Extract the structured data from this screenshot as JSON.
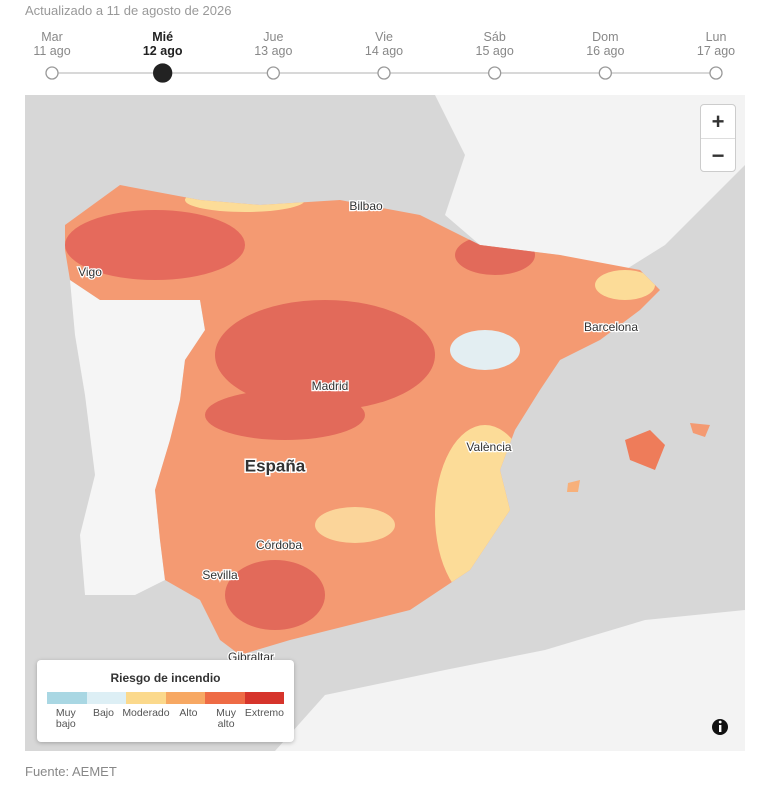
{
  "header": {
    "updated": "Actualizado a 11 de agosto de 2026"
  },
  "timeline": {
    "selected": 1,
    "days": [
      {
        "day": "Mar",
        "date": "11 ago"
      },
      {
        "day": "Mié",
        "date": "12 ago"
      },
      {
        "day": "Jue",
        "date": "13 ago"
      },
      {
        "day": "Vie",
        "date": "14 ago"
      },
      {
        "day": "Sáb",
        "date": "15 ago"
      },
      {
        "day": "Dom",
        "date": "16 ago"
      },
      {
        "day": "Lun",
        "date": "17 ago"
      }
    ]
  },
  "map": {
    "controls": {
      "zoom_in": "+",
      "zoom_out": "−"
    },
    "labels": [
      "Bilbao",
      "Vigo",
      "Barcelona",
      "Madrid",
      "València",
      "España",
      "Córdoba",
      "Sevilla",
      "Gibraltar"
    ]
  },
  "legend": {
    "title": "Riesgo de incendio",
    "items": [
      {
        "label": "Muy bajo",
        "color": "#a9d7e3"
      },
      {
        "label": "Bajo",
        "color": "#ddeff5"
      },
      {
        "label": "Moderado",
        "color": "#fbd98c"
      },
      {
        "label": "Alto",
        "color": "#f7a863"
      },
      {
        "label": "Muy alto",
        "color": "#ee6b45"
      },
      {
        "label": "Extremo",
        "color": "#d6342b"
      }
    ]
  },
  "source": "Fuente: AEMET"
}
